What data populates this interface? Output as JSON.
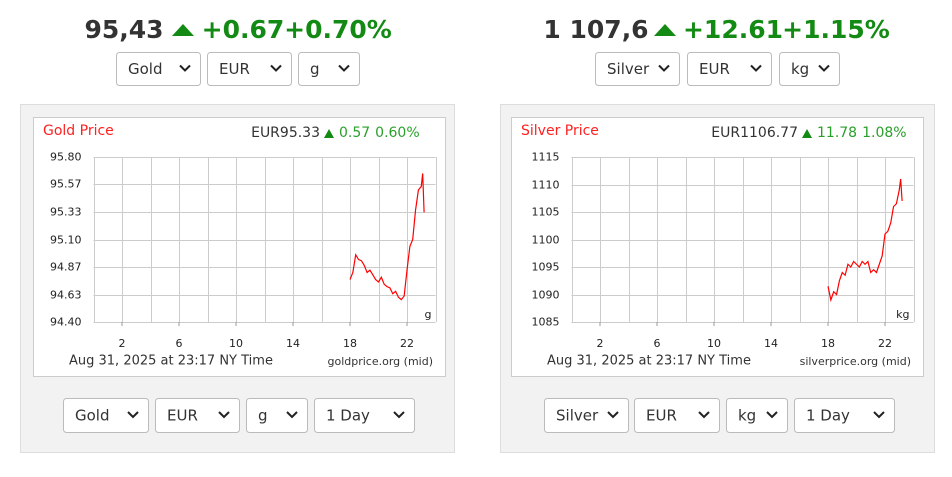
{
  "widgets": [
    {
      "price": "95,43",
      "change": "+0.67",
      "change_pct": "+0.70%",
      "selects": [
        "Gold",
        "EUR",
        "g"
      ],
      "bottom_selects": [
        "Gold",
        "EUR",
        "g",
        "1 Day"
      ]
    },
    {
      "price": "1 107,6",
      "change": "+12.61",
      "change_pct": "+1.15%",
      "selects": [
        "Silver",
        "EUR",
        "kg"
      ],
      "bottom_selects": [
        "Silver",
        "EUR",
        "kg",
        "1 Day"
      ]
    }
  ],
  "chart_data": [
    {
      "type": "line",
      "title": "Gold Price",
      "summary_price": "EUR95.33",
      "summary_change": "0.57",
      "summary_pct": "0.60%",
      "unit_label": "g",
      "timestamp": "Aug 31, 2025 at 23:17 NY Time",
      "source": "goldprice.org (mid)",
      "x": [
        18.0,
        18.2,
        18.4,
        18.6,
        18.8,
        19.0,
        19.2,
        19.4,
        19.6,
        19.8,
        20.0,
        20.2,
        20.4,
        20.6,
        20.8,
        21.0,
        21.2,
        21.4,
        21.6,
        21.8,
        22.0,
        22.2,
        22.4,
        22.6,
        22.8,
        23.0,
        23.1,
        23.2
      ],
      "values": [
        94.76,
        94.82,
        94.97,
        94.93,
        94.92,
        94.88,
        94.82,
        94.84,
        94.8,
        94.76,
        94.74,
        94.78,
        94.72,
        94.7,
        94.69,
        94.64,
        94.66,
        94.61,
        94.59,
        94.62,
        94.84,
        95.04,
        95.1,
        95.35,
        95.52,
        95.55,
        95.66,
        95.33
      ],
      "color": "#ff0000",
      "xlim": [
        0,
        24
      ],
      "xticks": [
        2,
        6,
        10,
        14,
        18,
        22
      ],
      "x_grid": [
        0,
        2,
        4,
        6,
        8,
        10,
        12,
        14,
        16,
        18,
        20,
        22,
        24
      ],
      "ylim": [
        94.4,
        95.8
      ],
      "yticks": [
        {
          "value": 94.4,
          "label": "94.40"
        },
        {
          "value": 94.63,
          "label": "94.63"
        },
        {
          "value": 94.87,
          "label": "94.87"
        },
        {
          "value": 95.1,
          "label": "95.10"
        },
        {
          "value": 95.33,
          "label": "95.33"
        },
        {
          "value": 95.57,
          "label": "95.57"
        },
        {
          "value": 95.8,
          "label": "95.80"
        }
      ],
      "grid": true
    },
    {
      "type": "line",
      "title": "Silver Price",
      "summary_price": "EUR1106.77",
      "summary_change": "11.78",
      "summary_pct": "1.08%",
      "unit_label": "kg",
      "timestamp": "Aug 31, 2025 at 23:17 NY Time",
      "source": "silverprice.org (mid)",
      "x": [
        18.0,
        18.2,
        18.4,
        18.6,
        18.8,
        19.0,
        19.2,
        19.4,
        19.6,
        19.8,
        20.0,
        20.2,
        20.4,
        20.6,
        20.8,
        21.0,
        21.2,
        21.4,
        21.6,
        21.8,
        22.0,
        22.2,
        22.4,
        22.6,
        22.8,
        23.0,
        23.1,
        23.2
      ],
      "values": [
        1091.5,
        1089,
        1090.5,
        1090,
        1092.5,
        1094,
        1093.5,
        1095.5,
        1095,
        1096,
        1095.5,
        1095,
        1096,
        1095.5,
        1096,
        1094,
        1094.5,
        1094,
        1095.5,
        1097,
        1101,
        1101.5,
        1103,
        1106,
        1106.5,
        1109,
        1111,
        1107
      ],
      "color": "#ff0000",
      "xlim": [
        0,
        24
      ],
      "xticks": [
        2,
        6,
        10,
        14,
        18,
        22
      ],
      "x_grid": [
        0,
        2,
        4,
        6,
        8,
        10,
        12,
        14,
        16,
        18,
        20,
        22,
        24
      ],
      "ylim": [
        1085,
        1115
      ],
      "yticks": [
        1085,
        1090,
        1095,
        1100,
        1105,
        1110,
        1115
      ],
      "grid": true
    }
  ]
}
